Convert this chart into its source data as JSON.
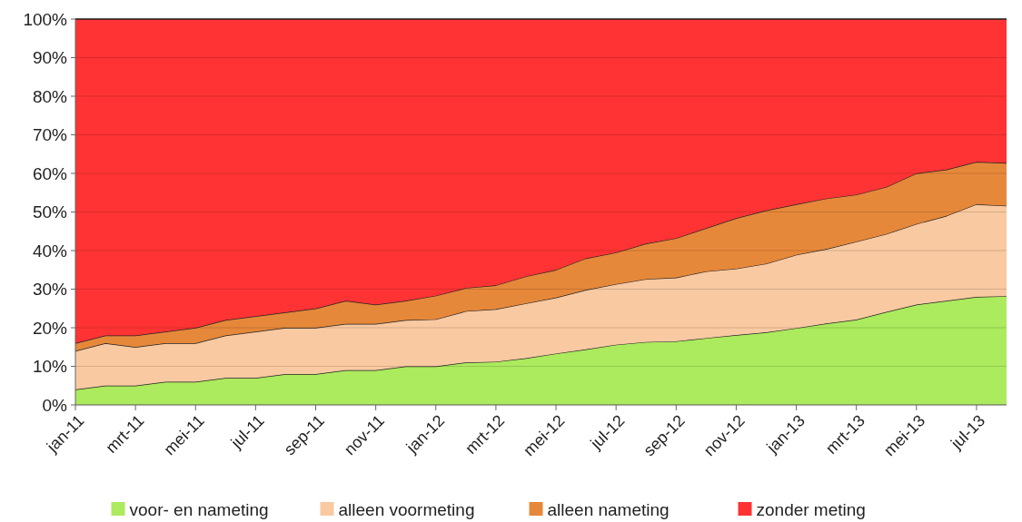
{
  "chart_data": {
    "type": "area",
    "stacked": true,
    "categories": [
      "jan-11",
      null,
      "mrt-11",
      null,
      "mei-11",
      null,
      "jul-11",
      null,
      "sep-11",
      null,
      "nov-11",
      null,
      "jan-12",
      null,
      "mrt-12",
      null,
      "mei-12",
      null,
      "jul-12",
      null,
      "sep-12",
      null,
      "nov-12",
      null,
      "jan-13",
      null,
      "mrt-13",
      null,
      "mei-13",
      null,
      "jul-13",
      null
    ],
    "series": [
      {
        "name": "voor- en nameting",
        "color": "#acea5e",
        "values": [
          4,
          5,
          5,
          6,
          6,
          7,
          7,
          8,
          8,
          9,
          9,
          10,
          10,
          11,
          11.2,
          12.1,
          13.3,
          14.4,
          15.6,
          16.3,
          16.5,
          17.3,
          18.1,
          18.8,
          19.9,
          21.1,
          22.1,
          24.1,
          26,
          27,
          28,
          28.2
        ]
      },
      {
        "name": "alleen voormeting",
        "color": "#f9c9a1",
        "values": [
          10,
          11,
          10,
          10,
          10,
          11,
          12,
          12,
          12,
          12,
          12,
          12,
          12.2,
          13.3,
          13.6,
          14.2,
          14.5,
          15.4,
          15.7,
          16.3,
          16.5,
          17.3,
          17.2,
          17.8,
          19,
          19.3,
          20.2,
          20.2,
          20.9,
          22,
          24,
          23.4
        ]
      },
      {
        "name": "alleen nameting",
        "color": "#e6883a",
        "values": [
          2,
          2,
          3,
          3,
          4,
          4,
          4,
          4,
          5,
          6,
          5,
          5,
          6.1,
          6,
          6.2,
          7,
          7.2,
          8.2,
          8.2,
          9.2,
          10.2,
          11.2,
          13.1,
          13.8,
          13.1,
          13.1,
          12.2,
          12.2,
          13.1,
          12,
          11,
          11.1
        ]
      },
      {
        "name": "zonder meting",
        "color": "#ff3333",
        "values": [
          84,
          82,
          82,
          81,
          80,
          78,
          77,
          76,
          75,
          73,
          74,
          73,
          71.7,
          69.7,
          69,
          66.7,
          65,
          62,
          60.5,
          58.2,
          56.8,
          54.2,
          51.6,
          49.6,
          48,
          46.5,
          45.5,
          43.5,
          40,
          39,
          37,
          37.3
        ]
      }
    ],
    "ylim": [
      0,
      100
    ],
    "yticks": [
      {
        "value": 0,
        "label": "0%"
      },
      {
        "value": 10,
        "label": "10%"
      },
      {
        "value": 20,
        "label": "20%"
      },
      {
        "value": 30,
        "label": "30%"
      },
      {
        "value": 40,
        "label": "40%"
      },
      {
        "value": 50,
        "label": "50%"
      },
      {
        "value": 60,
        "label": "60%"
      },
      {
        "value": 70,
        "label": "70%"
      },
      {
        "value": 80,
        "label": "80%"
      },
      {
        "value": 90,
        "label": "90%"
      },
      {
        "value": 100,
        "label": "100%"
      }
    ],
    "grid": "y",
    "legend": "bottom"
  }
}
